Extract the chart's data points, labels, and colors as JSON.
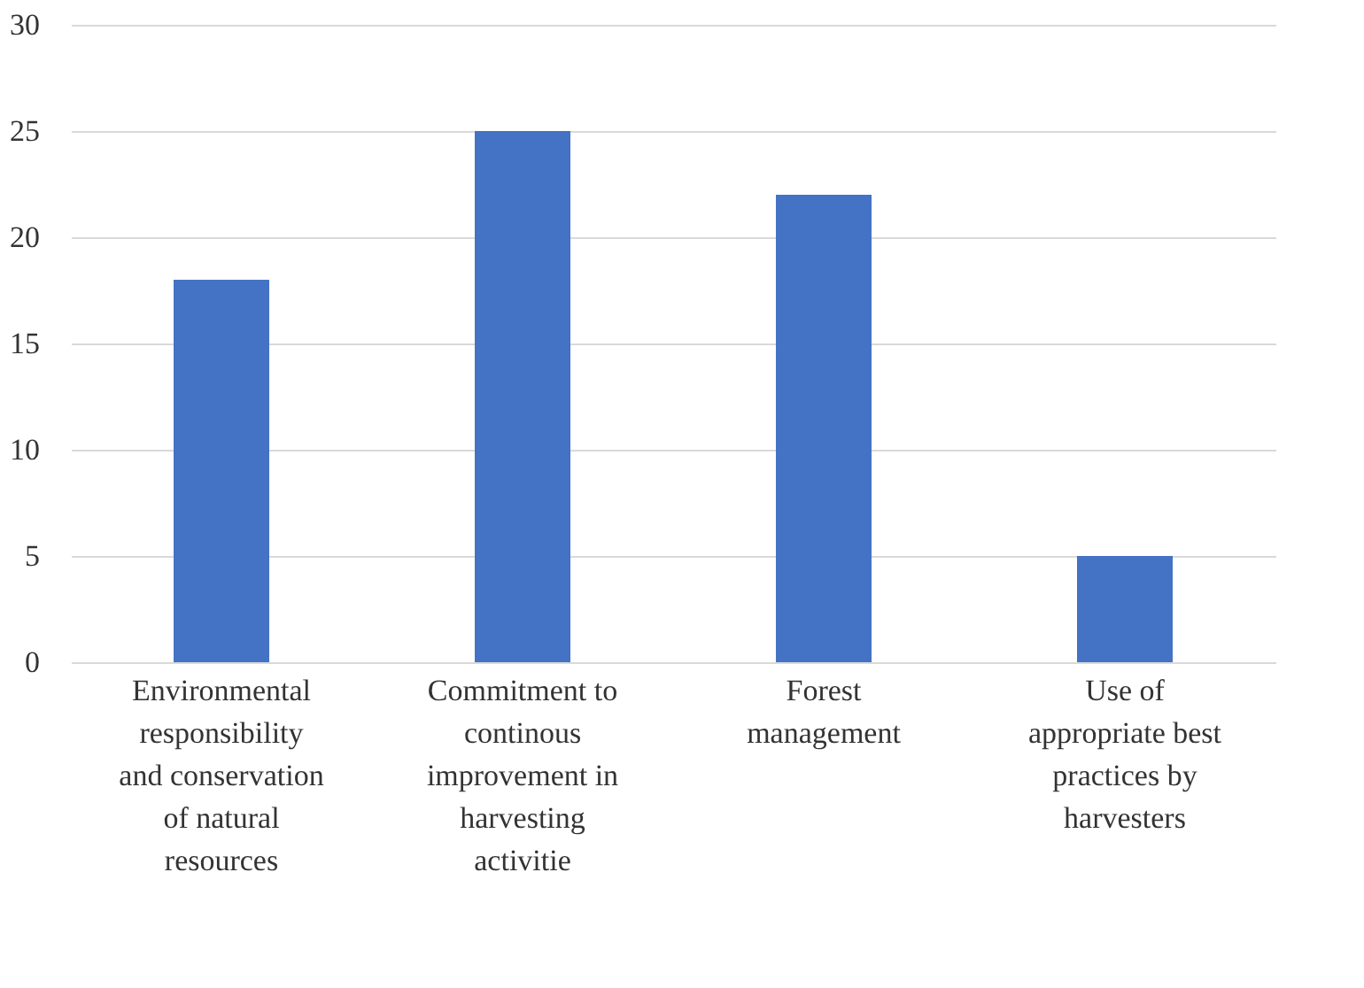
{
  "chart_data": {
    "type": "bar",
    "categories": [
      "Environmental responsibility and conservation of natural resources",
      "Commitment to continous improvement in harvesting activitie",
      "Forest management",
      "Use of appropriate best practices by harvesters"
    ],
    "values": [
      18,
      25,
      22,
      5
    ],
    "color": "#4472c4",
    "ylim": [
      0,
      30
    ],
    "yticks": [
      0,
      5,
      10,
      15,
      20,
      25,
      30
    ],
    "grid": "y"
  }
}
